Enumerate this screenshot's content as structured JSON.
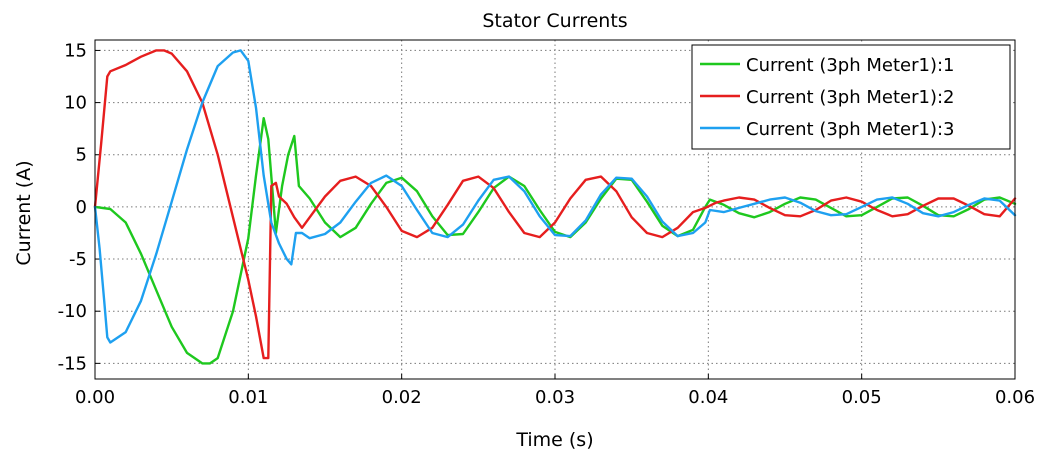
{
  "chart_data": {
    "type": "line",
    "title": "Stator Currents",
    "xlabel": "Time (s)",
    "ylabel": "Current (A)",
    "xlim": [
      0,
      0.06
    ],
    "ylim": [
      -16.5,
      16
    ],
    "xticks": [
      0,
      0.01,
      0.02,
      0.03,
      0.04,
      0.05,
      0.06
    ],
    "xtick_labels": [
      "0.00",
      "0.01",
      "0.02",
      "0.03",
      "0.04",
      "0.05",
      "0.06"
    ],
    "yticks": [
      -15,
      -10,
      -5,
      0,
      5,
      10,
      15
    ],
    "ytick_labels": [
      "-15",
      "-10",
      "-5",
      "0",
      "5",
      "10",
      "15"
    ],
    "grid": true,
    "legend_position": "top-right",
    "series": [
      {
        "name": "Current (3ph Meter1):1",
        "color": "#1ec81e",
        "x": [
          0,
          0.001,
          0.002,
          0.003,
          0.004,
          0.005,
          0.006,
          0.007,
          0.0075,
          0.008,
          0.009,
          0.01,
          0.0105,
          0.011,
          0.0113,
          0.0118,
          0.0122,
          0.0126,
          0.013,
          0.0133,
          0.014,
          0.015,
          0.016,
          0.017,
          0.018,
          0.019,
          0.02,
          0.021,
          0.022,
          0.023,
          0.024,
          0.025,
          0.026,
          0.027,
          0.028,
          0.029,
          0.03,
          0.031,
          0.032,
          0.033,
          0.034,
          0.035,
          0.036,
          0.037,
          0.038,
          0.039,
          0.0398,
          0.0401,
          0.041,
          0.042,
          0.043,
          0.044,
          0.045,
          0.046,
          0.047,
          0.048,
          0.049,
          0.05,
          0.051,
          0.052,
          0.053,
          0.054,
          0.055,
          0.056,
          0.057,
          0.058,
          0.059,
          0.06
        ],
        "values": [
          0,
          -0.2,
          -1.5,
          -4.5,
          -8.0,
          -11.5,
          -14.0,
          -15.0,
          -15.0,
          -14.5,
          -10.0,
          -3.0,
          3.0,
          8.5,
          6.5,
          -2.5,
          2.0,
          5.0,
          6.8,
          2.0,
          0.8,
          -1.5,
          -2.9,
          -2.0,
          0.3,
          2.3,
          2.8,
          1.5,
          -0.9,
          -2.7,
          -2.6,
          -0.5,
          1.8,
          2.9,
          2.0,
          -0.3,
          -2.4,
          -2.9,
          -1.5,
          0.8,
          2.7,
          2.6,
          0.5,
          -1.8,
          -2.8,
          -2.2,
          0.0,
          0.7,
          0.2,
          -0.6,
          -1.0,
          -0.5,
          0.3,
          0.9,
          0.7,
          -0.1,
          -0.9,
          -0.8,
          0.0,
          0.8,
          0.9,
          0.1,
          -0.8,
          -0.9,
          -0.2,
          0.7,
          0.9,
          0.3
        ]
      },
      {
        "name": "Current (3ph Meter1):2",
        "color": "#e61e1e",
        "x": [
          0,
          0.0004,
          0.0008,
          0.001,
          0.002,
          0.003,
          0.004,
          0.0045,
          0.005,
          0.006,
          0.007,
          0.008,
          0.009,
          0.01,
          0.0105,
          0.011,
          0.0113,
          0.0115,
          0.0118,
          0.012,
          0.0125,
          0.013,
          0.0135,
          0.014,
          0.015,
          0.016,
          0.017,
          0.018,
          0.019,
          0.02,
          0.021,
          0.022,
          0.023,
          0.024,
          0.025,
          0.026,
          0.027,
          0.028,
          0.029,
          0.03,
          0.031,
          0.032,
          0.033,
          0.034,
          0.035,
          0.036,
          0.037,
          0.038,
          0.039,
          0.0398,
          0.0405,
          0.041,
          0.042,
          0.043,
          0.044,
          0.045,
          0.046,
          0.047,
          0.048,
          0.049,
          0.05,
          0.051,
          0.052,
          0.053,
          0.054,
          0.055,
          0.056,
          0.057,
          0.058,
          0.059,
          0.06
        ],
        "values": [
          0,
          6.0,
          12.5,
          13.0,
          13.6,
          14.4,
          15.0,
          15.0,
          14.7,
          13.0,
          10.0,
          5.0,
          -1.0,
          -7.0,
          -10.5,
          -14.5,
          -14.5,
          2.0,
          2.3,
          1.0,
          0.3,
          -1.0,
          -2.0,
          -1.0,
          1.0,
          2.5,
          2.9,
          2.0,
          0.0,
          -2.3,
          -2.9,
          -2.0,
          0.2,
          2.5,
          2.9,
          1.8,
          -0.5,
          -2.5,
          -2.9,
          -1.5,
          0.8,
          2.6,
          2.9,
          1.5,
          -1.0,
          -2.5,
          -2.9,
          -2.0,
          -0.5,
          -0.1,
          0.4,
          0.6,
          0.9,
          0.7,
          -0.1,
          -0.8,
          -0.9,
          -0.3,
          0.6,
          0.9,
          0.5,
          -0.3,
          -0.9,
          -0.7,
          0.1,
          0.8,
          0.8,
          0.1,
          -0.7,
          -0.9,
          0.8
        ]
      },
      {
        "name": "Current (3ph Meter1):3",
        "color": "#1ea0f0",
        "x": [
          0,
          0.0003,
          0.0006,
          0.0008,
          0.001,
          0.002,
          0.003,
          0.004,
          0.005,
          0.006,
          0.007,
          0.008,
          0.009,
          0.0095,
          0.01,
          0.0105,
          0.011,
          0.0115,
          0.012,
          0.0125,
          0.0128,
          0.0131,
          0.0135,
          0.014,
          0.015,
          0.016,
          0.017,
          0.018,
          0.019,
          0.02,
          0.021,
          0.022,
          0.023,
          0.024,
          0.025,
          0.026,
          0.027,
          0.028,
          0.029,
          0.03,
          0.031,
          0.032,
          0.033,
          0.034,
          0.035,
          0.036,
          0.037,
          0.038,
          0.039,
          0.0398,
          0.0401,
          0.041,
          0.042,
          0.043,
          0.044,
          0.045,
          0.046,
          0.047,
          0.048,
          0.049,
          0.05,
          0.051,
          0.052,
          0.053,
          0.054,
          0.055,
          0.056,
          0.057,
          0.058,
          0.059,
          0.06
        ],
        "values": [
          0,
          -4.0,
          -9.0,
          -12.5,
          -13.0,
          -12.0,
          -9.0,
          -4.5,
          0.5,
          5.5,
          10.0,
          13.5,
          14.8,
          15.0,
          14.0,
          9.5,
          3.0,
          -1.5,
          -3.5,
          -5.0,
          -5.5,
          -2.5,
          -2.5,
          -3.0,
          -2.6,
          -1.5,
          0.5,
          2.3,
          3.0,
          2.0,
          -0.3,
          -2.5,
          -2.9,
          -1.7,
          0.6,
          2.6,
          2.9,
          1.5,
          -0.9,
          -2.7,
          -2.8,
          -1.3,
          1.2,
          2.8,
          2.7,
          1.0,
          -1.4,
          -2.8,
          -2.5,
          -1.5,
          -0.3,
          -0.5,
          -0.1,
          0.3,
          0.7,
          0.9,
          0.4,
          -0.4,
          -0.8,
          -0.7,
          0.0,
          0.7,
          0.9,
          0.3,
          -0.6,
          -0.9,
          -0.5,
          0.2,
          0.8,
          0.6,
          -0.8
        ]
      }
    ]
  }
}
